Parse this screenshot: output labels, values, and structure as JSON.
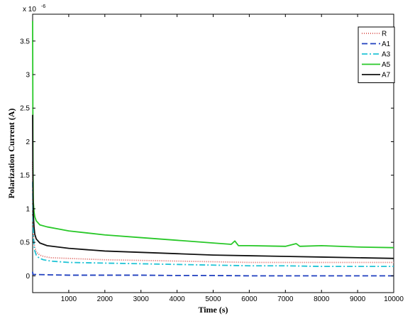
{
  "chart_data": {
    "type": "line",
    "title": "",
    "xlabel": "Time (s)",
    "ylabel": "Polarization Current (A)",
    "y_scale_factor_label": "x 10",
    "y_scale_exponent": "-6",
    "xlim": [
      0,
      10000
    ],
    "ylim": [
      -0.25,
      3.9
    ],
    "x_ticks": [
      1000,
      2000,
      3000,
      4000,
      5000,
      6000,
      7000,
      8000,
      9000,
      10000
    ],
    "x_tick_labels": [
      "1000",
      "2000",
      "3000",
      "4000",
      "5000",
      "6000",
      "7000",
      "8000",
      "9000",
      "10000"
    ],
    "y_ticks": [
      0,
      0.5,
      1,
      1.5,
      2,
      2.5,
      3,
      3.5
    ],
    "y_tick_labels": [
      "0",
      "0.5",
      "1",
      "1.5",
      "2",
      "2.5",
      "3",
      "3.5"
    ],
    "grid": false,
    "legend_position": "top-right",
    "series": [
      {
        "name": "R",
        "color": "#d9534f",
        "dash": "1,2",
        "x": [
          0,
          10,
          20,
          40,
          60,
          100,
          150,
          200,
          300,
          500,
          1000,
          2000,
          3000,
          4000,
          5000,
          6000,
          7000,
          8000,
          9000,
          10000
        ],
        "y": [
          1.7,
          0.95,
          0.68,
          0.5,
          0.42,
          0.36,
          0.33,
          0.31,
          0.29,
          0.27,
          0.26,
          0.24,
          0.23,
          0.22,
          0.21,
          0.2,
          0.2,
          0.2,
          0.2,
          0.2
        ]
      },
      {
        "name": "A1",
        "color": "#1f3fbf",
        "dash": "8,4",
        "x": [
          0,
          5,
          20,
          50,
          100,
          500,
          1000,
          2000,
          3000,
          4000,
          5000,
          6000,
          7000,
          8000,
          9000,
          10000
        ],
        "y": [
          0.06,
          0.03,
          0.02,
          0.02,
          0.02,
          0.015,
          0.01,
          0.01,
          0.01,
          0.005,
          0.005,
          0.0,
          0.0,
          0.0,
          0.0,
          0.0
        ]
      },
      {
        "name": "A3",
        "color": "#22c4d6",
        "dash": "8,3,2,3",
        "x": [
          0,
          10,
          20,
          40,
          60,
          100,
          150,
          200,
          300,
          500,
          1000,
          2000,
          3000,
          4000,
          5000,
          6000,
          7000,
          8000,
          9000,
          10000
        ],
        "y": [
          1.4,
          0.85,
          0.6,
          0.45,
          0.37,
          0.31,
          0.28,
          0.26,
          0.24,
          0.22,
          0.2,
          0.19,
          0.18,
          0.17,
          0.16,
          0.15,
          0.15,
          0.14,
          0.14,
          0.14
        ]
      },
      {
        "name": "A5",
        "color": "#28c828",
        "dash": "",
        "x": [
          0,
          5,
          10,
          20,
          40,
          60,
          100,
          200,
          400,
          700,
          1000,
          1500,
          2000,
          3000,
          4000,
          5000,
          5500,
          5600,
          5700,
          6000,
          7000,
          7300,
          7400,
          8000,
          9000,
          10000
        ],
        "y": [
          3.8,
          2.8,
          1.7,
          1.1,
          0.95,
          0.88,
          0.82,
          0.76,
          0.73,
          0.7,
          0.67,
          0.64,
          0.61,
          0.57,
          0.53,
          0.49,
          0.47,
          0.52,
          0.45,
          0.45,
          0.44,
          0.48,
          0.44,
          0.45,
          0.43,
          0.42
        ]
      },
      {
        "name": "A7",
        "color": "#111111",
        "dash": "",
        "x": [
          0,
          5,
          10,
          20,
          40,
          60,
          100,
          200,
          400,
          700,
          1000,
          1500,
          2000,
          3000,
          4000,
          5000,
          6000,
          7000,
          8000,
          9000,
          10000
        ],
        "y": [
          2.4,
          1.7,
          1.2,
          0.9,
          0.72,
          0.62,
          0.55,
          0.49,
          0.45,
          0.43,
          0.41,
          0.39,
          0.37,
          0.35,
          0.33,
          0.31,
          0.3,
          0.29,
          0.28,
          0.27,
          0.26
        ]
      }
    ]
  }
}
